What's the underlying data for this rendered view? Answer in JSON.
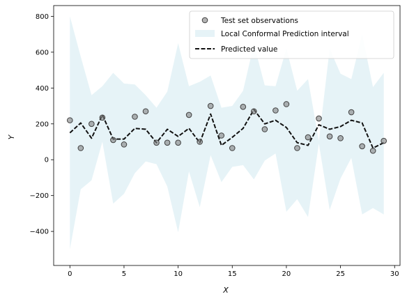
{
  "chart_data": {
    "type": "line",
    "xlabel": "X",
    "ylabel": "Y",
    "xlim": [
      -1.5,
      30.5
    ],
    "ylim": [
      -590,
      860
    ],
    "xticks": [
      0,
      5,
      10,
      15,
      20,
      25,
      30
    ],
    "yticks": [
      -400,
      -200,
      0,
      200,
      400,
      600,
      800
    ],
    "xtick_labels": [
      "0",
      "5",
      "10",
      "15",
      "20",
      "25",
      "30"
    ],
    "ytick_labels": [
      "−400",
      "−200",
      "0",
      "200",
      "400",
      "600",
      "800"
    ],
    "grid": false,
    "legend_position": "top-right",
    "x": [
      0,
      1,
      2,
      3,
      4,
      5,
      6,
      7,
      8,
      9,
      10,
      11,
      12,
      13,
      14,
      15,
      16,
      17,
      18,
      19,
      20,
      21,
      22,
      23,
      24,
      25,
      26,
      27,
      28,
      29
    ],
    "series": [
      {
        "name": "Test set observations",
        "kind": "scatter",
        "color": "#808080",
        "values": [
          220,
          65,
          200,
          235,
          110,
          85,
          240,
          270,
          95,
          95,
          95,
          250,
          100,
          300,
          135,
          65,
          295,
          270,
          170,
          275,
          310,
          65,
          125,
          230,
          130,
          120,
          265,
          75,
          50,
          105
        ]
      },
      {
        "name": "Local Conformal Prediction interval",
        "kind": "band",
        "color": "#add8e6",
        "lower": [
          -500,
          -165,
          -115,
          100,
          -245,
          -190,
          -75,
          -10,
          -25,
          -150,
          -405,
          -65,
          -265,
          25,
          -125,
          -40,
          -30,
          -110,
          -5,
          35,
          -290,
          -220,
          -320,
          90,
          -280,
          -105,
          10,
          -305,
          -270,
          -305
        ],
        "upper": [
          800,
          575,
          360,
          410,
          485,
          425,
          420,
          360,
          290,
          380,
          650,
          410,
          435,
          470,
          290,
          300,
          385,
          645,
          415,
          410,
          620,
          385,
          450,
          105,
          620,
          480,
          450,
          700,
          405,
          485
        ]
      },
      {
        "name": "Predicted value",
        "kind": "line",
        "color": "#111111",
        "values": [
          150,
          205,
          120,
          250,
          115,
          115,
          175,
          170,
          95,
          170,
          130,
          175,
          95,
          255,
          80,
          125,
          175,
          280,
          200,
          220,
          180,
          95,
          80,
          195,
          170,
          185,
          220,
          205,
          65,
          95
        ]
      }
    ]
  }
}
